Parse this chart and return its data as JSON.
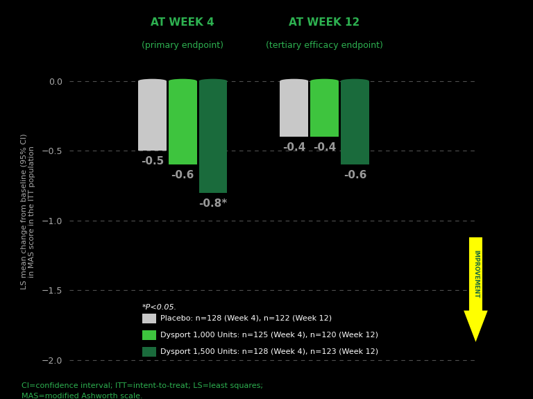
{
  "title_week4": "AT WEEK 4",
  "subtitle_week4": "(primary endpoint)",
  "title_week12": "AT WEEK 12",
  "subtitle_week12": "(tertiary efficacy endpoint)",
  "groups": [
    "Week 4",
    "Week 12"
  ],
  "series": [
    "Placebo",
    "Dysport 1,000 Units",
    "Dysport 1,500 Units"
  ],
  "values_week4": [
    -0.5,
    -0.6,
    -0.8
  ],
  "values_week12": [
    -0.4,
    -0.4,
    -0.6
  ],
  "bar_colors": [
    "#c8c8c8",
    "#3ec43e",
    "#1a6b3c"
  ],
  "bar_width": 0.07,
  "group_centers_data": [
    0.28,
    0.63
  ],
  "ylim": [
    -2.05,
    0.18
  ],
  "yticks": [
    0,
    -0.5,
    -1.0,
    -1.5,
    -2.0
  ],
  "ylabel": "LS mean change from baseline (95% CI)\nin MAS score in the ITT population",
  "background_color": "#000000",
  "plot_bg_color": "#000000",
  "grid_color": "#505050",
  "text_color": "#ffffff",
  "header_color": "#2db050",
  "label_color": "#aaaaaa",
  "value_label_color": "#999999",
  "legend_note": "*P<0.05.",
  "legend_entries": [
    "Placebo: n=128 (Week 4), n=122 (Week 12)",
    "Dysport 1,000 Units: n=125 (Week 4), n=120 (Week 12)",
    "Dysport 1,500 Units: n=128 (Week 4), n=123 (Week 12)"
  ],
  "footnote_line1": "CI=confidence interval; ITT=intent-to-treat; LS=least squares;",
  "footnote_line2": "MAS=modified Ashworth scale.",
  "improvement_color": "#ffff00",
  "improvement_text_color": "#1a6b3c",
  "improvement_label": "IMPROVEMENT",
  "xlim": [
    0.0,
    1.0
  ]
}
